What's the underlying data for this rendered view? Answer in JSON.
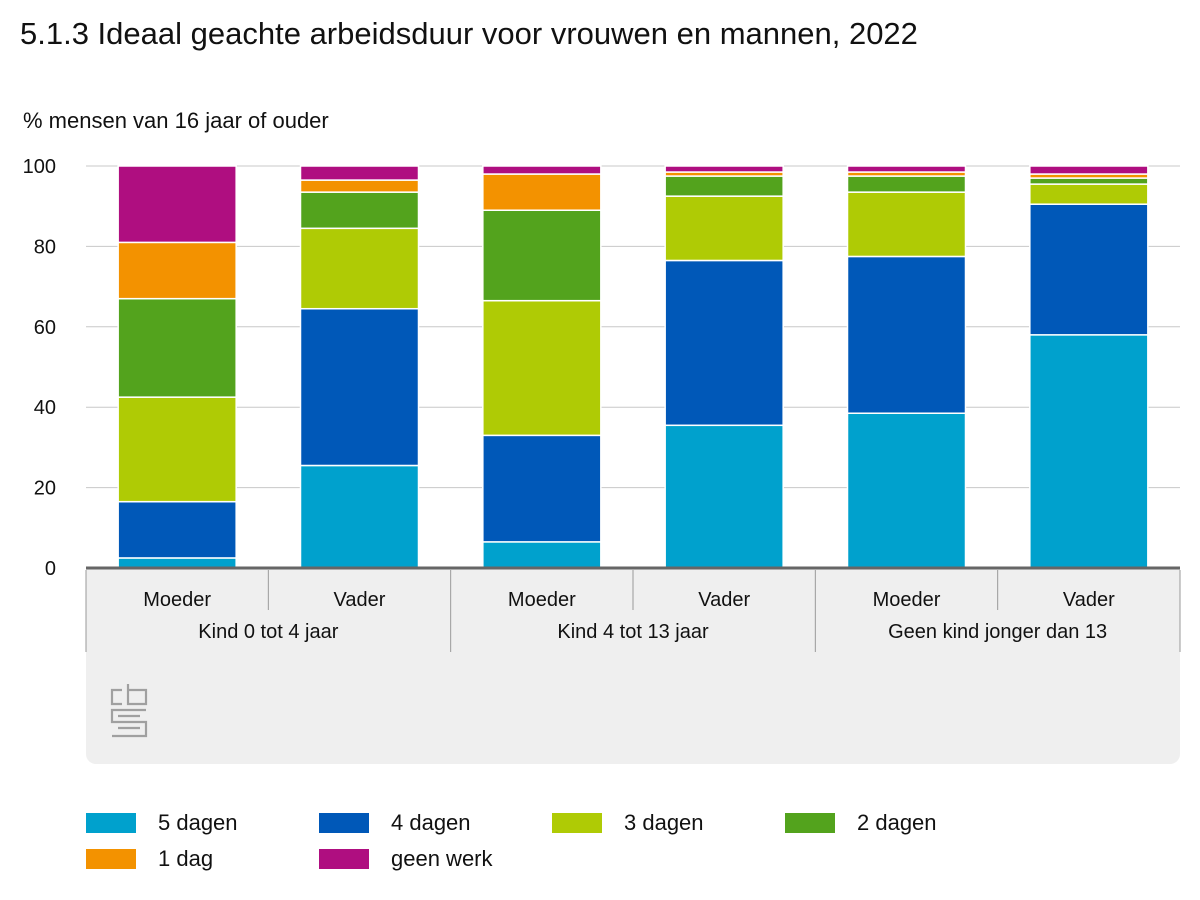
{
  "title": "5.1.3 Ideaal geachte arbeidsduur voor vrouwen en mannen, 2022",
  "subtitle": "% mensen van 16 jaar of ouder",
  "logo_text": "cbs",
  "chart_data": {
    "type": "bar",
    "stacked": true,
    "title": "5.1.3 Ideaal geachte arbeidsduur voor vrouwen en mannen, 2022",
    "ylabel": "% mensen van 16 jaar of ouder",
    "ylim": [
      0,
      100
    ],
    "yticks": [
      0,
      20,
      40,
      60,
      80,
      100
    ],
    "grid": true,
    "legend_position": "bottom",
    "categories": [
      "Moeder",
      "Vader",
      "Moeder",
      "Vader",
      "Moeder",
      "Vader"
    ],
    "groups": [
      {
        "label": "Kind 0 tot 4 jaar",
        "span": 2
      },
      {
        "label": "Kind 4 tot 13 jaar",
        "span": 2
      },
      {
        "label": "Geen kind jonger dan 13",
        "span": 2
      }
    ],
    "series": [
      {
        "name": "5 dagen",
        "color": "#00a1cd",
        "values": [
          2.5,
          25.5,
          6.5,
          35.5,
          38.5,
          58
        ]
      },
      {
        "name": "4 dagen",
        "color": "#0058b8",
        "values": [
          14,
          39,
          26.5,
          41,
          39,
          32.5
        ]
      },
      {
        "name": "3 dagen",
        "color": "#afcb05",
        "values": [
          26,
          20,
          33.5,
          16,
          16,
          5
        ]
      },
      {
        "name": "2 dagen",
        "color": "#53a31d",
        "values": [
          24.5,
          9,
          22.5,
          5,
          4,
          1.5
        ]
      },
      {
        "name": "1 dag",
        "color": "#f39200",
        "values": [
          14,
          3,
          9,
          1,
          1,
          1
        ]
      },
      {
        "name": "geen werk",
        "color": "#af0e80",
        "values": [
          19,
          3.5,
          2,
          1.5,
          1.5,
          2
        ]
      }
    ]
  }
}
